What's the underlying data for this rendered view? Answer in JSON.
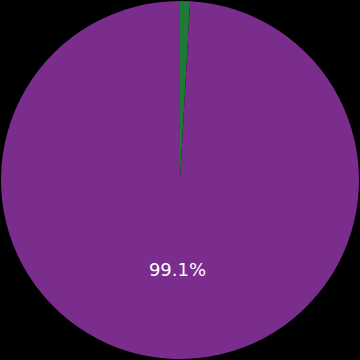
{
  "chart_data": {
    "type": "pie",
    "values": [
      0.9,
      99.1
    ],
    "value_labels": [
      null,
      "99.1%"
    ],
    "colors": [
      "#1f7a35",
      "#7b2d8e"
    ]
  }
}
